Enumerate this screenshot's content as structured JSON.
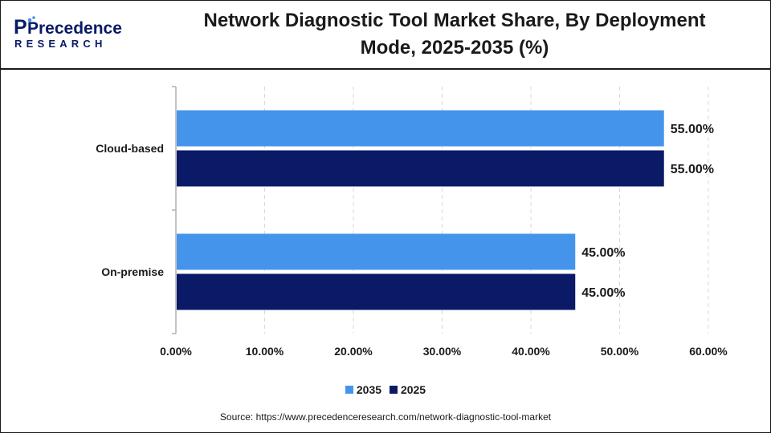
{
  "header": {
    "logo_main": "Precedence",
    "logo_sub": "RESEARCH",
    "title_line1": "Network Diagnostic Tool Market Share, By Deployment",
    "title_line2": "Mode, 2025-2035 (%)"
  },
  "colors": {
    "series_2035": "#4594ec",
    "series_2025": "#0a1a66",
    "brand": "#0a1a66",
    "brand_accent": "#4594ec"
  },
  "chart_data": {
    "type": "bar",
    "orientation": "horizontal",
    "title": "Network Diagnostic Tool Market Share, By Deployment Mode, 2025-2035 (%)",
    "categories": [
      "Cloud-based",
      "On-premise"
    ],
    "series": [
      {
        "name": "2035",
        "values": [
          55.0,
          45.0
        ],
        "labels": [
          "55.00%",
          "45.00%"
        ]
      },
      {
        "name": "2025",
        "values": [
          55.0,
          45.0
        ],
        "labels": [
          "55.00%",
          "45.00%"
        ]
      }
    ],
    "xlim": [
      0,
      60
    ],
    "xticks": [
      0,
      10,
      20,
      30,
      40,
      50,
      60
    ],
    "xtick_labels": [
      "0.00%",
      "10.00%",
      "20.00%",
      "30.00%",
      "40.00%",
      "50.00%",
      "60.00%"
    ],
    "grid": true,
    "legend_position": "bottom-center"
  },
  "legend": {
    "items": [
      "2035",
      "2025"
    ]
  },
  "source": "Source: https://www.precedenceresearch.com/network-diagnostic-tool-market"
}
